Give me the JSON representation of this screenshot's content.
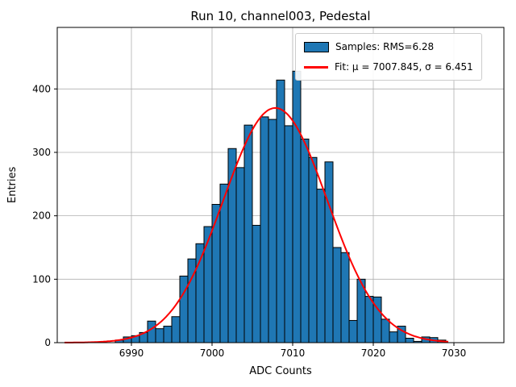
{
  "figure": {
    "title": "Run 10, channel003, Pedestal",
    "xlabel": "ADC Counts",
    "ylabel": "Entries"
  },
  "legend": {
    "items": [
      {
        "label": "Samples: RMS=6.28",
        "marker": "patch",
        "color": "#1f77b4",
        "edge_color": "#000000"
      },
      {
        "label": "Fit: μ = 7007.845, σ = 6.451",
        "marker": "line",
        "color": "#ff0000"
      }
    ]
  },
  "colors": {
    "bar_fill": "#1f77b4",
    "bar_edge": "#000000",
    "fit_line": "#ff0000",
    "grid": "#b0b0b0",
    "axes": "#000000",
    "background": "#ffffff"
  },
  "chart_data": {
    "type": "bar",
    "subtype": "histogram-with-gaussian-fit",
    "title": "Run 10, channel003, Pedestal",
    "xlabel": "ADC Counts",
    "ylabel": "Entries",
    "xlim": [
      6980.8,
      7036.2
    ],
    "ylim": [
      0,
      497
    ],
    "x_ticks": [
      6990,
      7000,
      7010,
      7020,
      7030
    ],
    "y_ticks": [
      0,
      100,
      200,
      300,
      400
    ],
    "grid": true,
    "legend_position": "upper right",
    "series": [
      {
        "name": "Samples: RMS=6.28",
        "kind": "histogram",
        "color": "#1f77b4",
        "edge_color": "#000000",
        "bin_width": 1,
        "bin_starts": [
          6988,
          6989,
          6990,
          6991,
          6992,
          6993,
          6994,
          6995,
          6996,
          6997,
          6998,
          6999,
          7000,
          7001,
          7002,
          7003,
          7004,
          7005,
          7006,
          7007,
          7008,
          7009,
          7010,
          7011,
          7012,
          7013,
          7014,
          7015,
          7016,
          7017,
          7018,
          7019,
          7020,
          7021,
          7022,
          7023,
          7024,
          7025,
          7026,
          7027,
          7028
        ],
        "counts": [
          4,
          9,
          11,
          16,
          34,
          22,
          26,
          41,
          105,
          132,
          156,
          183,
          218,
          250,
          306,
          276,
          343,
          185,
          356,
          352,
          414,
          342,
          428,
          321,
          292,
          242,
          285,
          150,
          142,
          35,
          100,
          73,
          72,
          37,
          17,
          26,
          7,
          2,
          9,
          8,
          4
        ]
      },
      {
        "name": "Fit: μ = 7007.845, σ = 6.451",
        "kind": "gaussian_fit",
        "color": "#ff0000",
        "mu": 7007.845,
        "sigma": 6.451,
        "amplitude": 370,
        "x_range": [
          6981.7,
          7029.3
        ]
      }
    ]
  }
}
